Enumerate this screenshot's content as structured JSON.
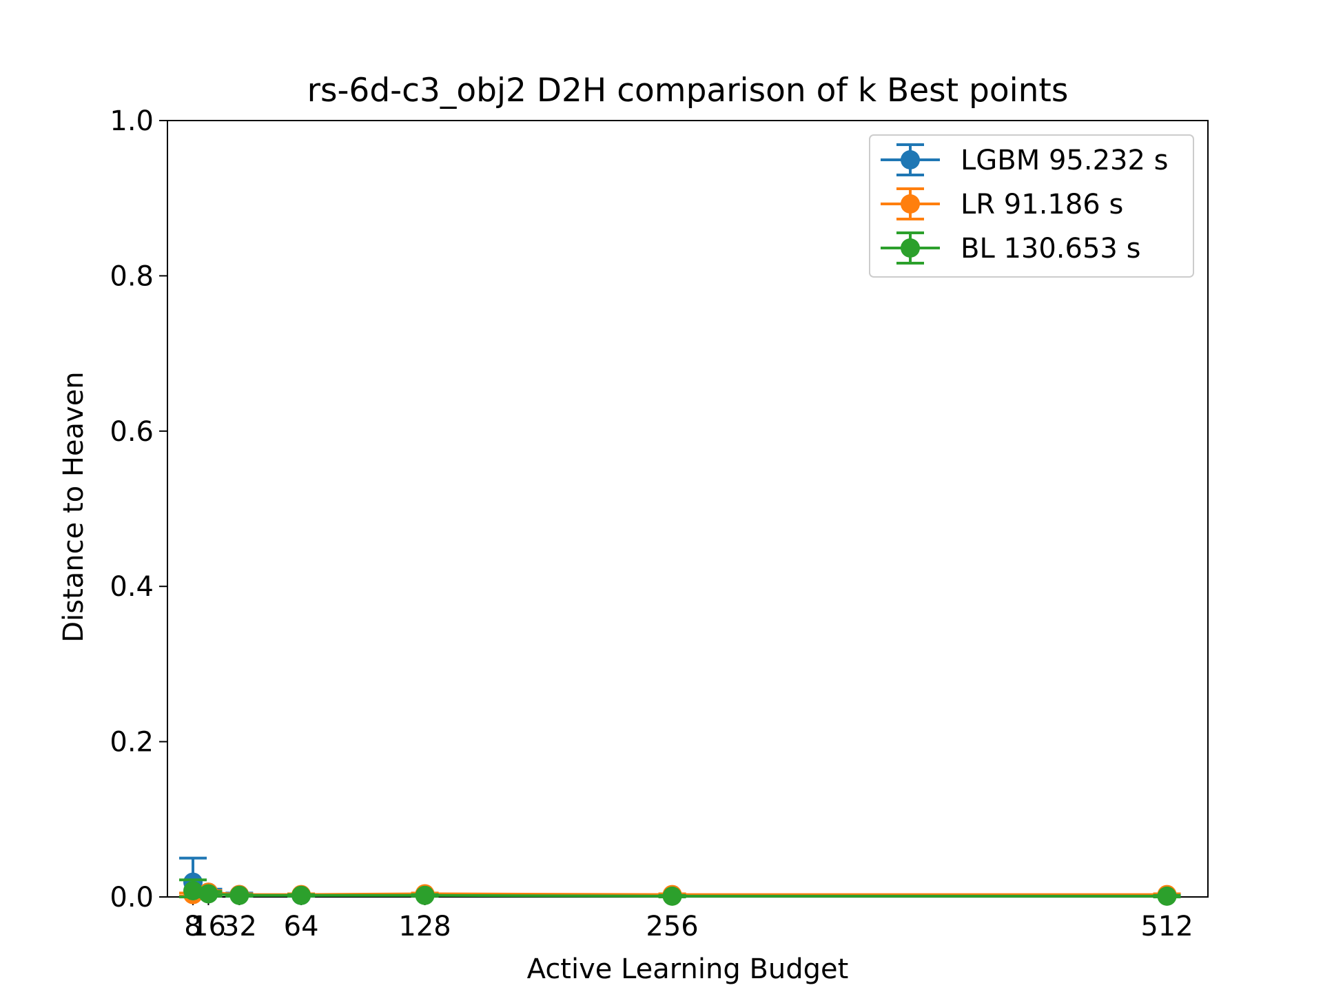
{
  "chart_data": {
    "type": "line",
    "title": "rs-6d-c3_obj2 D2H comparison of k Best points",
    "xlabel": "Active Learning Budget",
    "ylabel": "Distance to Heaven",
    "xlim": [
      -5.2,
      533.2
    ],
    "ylim": [
      0,
      1
    ],
    "xticks": [
      8,
      16,
      32,
      64,
      128,
      256,
      512
    ],
    "xtick_labels": [
      "8",
      "16",
      "32",
      "64",
      "128",
      "256",
      "512"
    ],
    "yticks": [
      0,
      0.2,
      0.4,
      0.6,
      0.8,
      1.0
    ],
    "ytick_labels": [
      "0.0",
      "0.2",
      "0.4",
      "0.6",
      "0.8",
      "1.0"
    ],
    "grid": false,
    "legend_position": "top-right",
    "x": [
      8,
      16,
      32,
      64,
      128,
      256,
      512
    ],
    "series": [
      {
        "name": "LGBM 95.232 s",
        "color": "#1f77b4",
        "values": [
          0.019,
          0.006,
          0.003,
          0.002,
          0.003,
          0.002,
          0.002
        ],
        "err": [
          0.031,
          0.004,
          0.002,
          0.001,
          0.001,
          0.001,
          0.001
        ]
      },
      {
        "name": "LR 91.186 s",
        "color": "#ff7f0e",
        "values": [
          0.003,
          0.006,
          0.003,
          0.003,
          0.004,
          0.003,
          0.003
        ],
        "err": [
          0.002,
          0.002,
          0.001,
          0.001,
          0.001,
          0.001,
          0.001
        ]
      },
      {
        "name": "BL 130.653 s",
        "color": "#2ca02c",
        "values": [
          0.008,
          0.004,
          0.002,
          0.002,
          0.002,
          0.001,
          0.001
        ],
        "err": [
          0.014,
          0.003,
          0.001,
          0.001,
          0.001,
          0.001,
          0.001
        ]
      }
    ]
  }
}
